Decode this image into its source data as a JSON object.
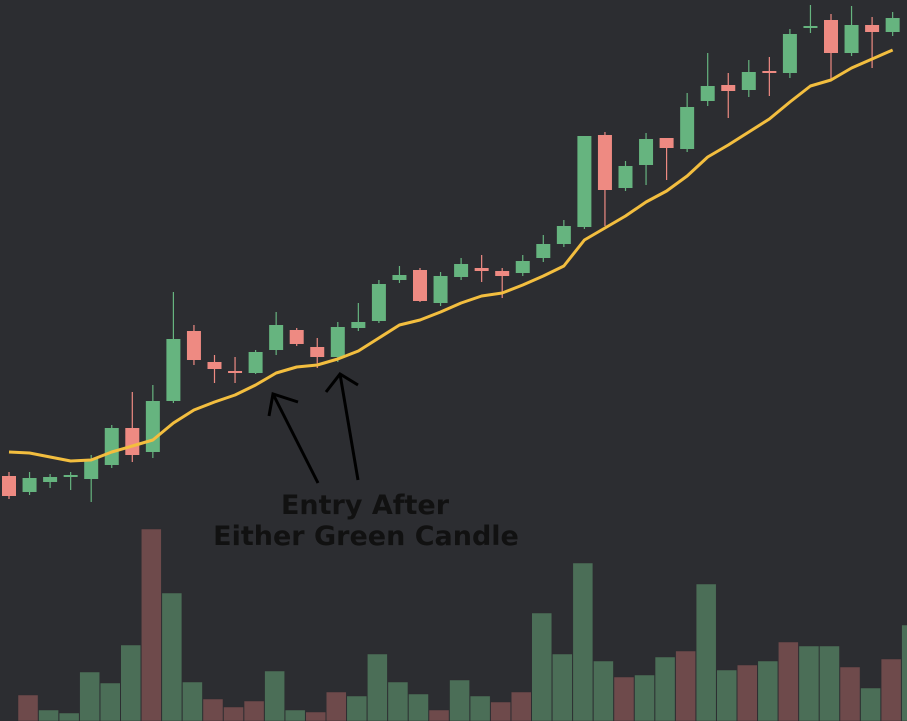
{
  "chart_data": {
    "type": "candlestick",
    "categories": [
      null,
      null,
      null,
      null,
      null,
      null,
      null,
      null,
      null,
      null,
      null,
      null,
      null,
      null,
      null,
      null,
      null,
      null,
      null,
      null,
      null,
      null,
      null,
      null,
      null,
      null,
      null,
      null,
      null,
      null,
      null,
      null,
      null,
      null,
      null,
      null,
      null,
      null,
      null,
      null,
      null,
      null,
      null,
      null
    ],
    "open": [
      245,
      229,
      239,
      244,
      242,
      256,
      293,
      269,
      320,
      390,
      359,
      350,
      348,
      371,
      391,
      374,
      364,
      393,
      400,
      441,
      451,
      418,
      444,
      453,
      450,
      448,
      463,
      477,
      494,
      586,
      533,
      556,
      583,
      572,
      620,
      636,
      631,
      650,
      648,
      693,
      701,
      668,
      696,
      689
    ],
    "high": [
      249,
      249,
      247,
      249,
      266,
      296,
      329,
      336,
      429,
      396,
      366,
      364,
      371,
      409,
      393,
      383,
      399,
      418,
      441,
      455,
      453,
      449,
      463,
      466,
      453,
      466,
      486,
      501,
      585,
      589,
      560,
      588,
      583,
      628,
      668,
      648,
      661,
      664,
      692,
      716,
      707,
      715,
      704,
      709
    ],
    "low": [
      222,
      226,
      233,
      231,
      219,
      253,
      259,
      263,
      318,
      356,
      338,
      338,
      347,
      366,
      375,
      353,
      359,
      390,
      398,
      438,
      419,
      415,
      441,
      439,
      423,
      445,
      459,
      474,
      492,
      495,
      530,
      536,
      541,
      569,
      615,
      603,
      624,
      625,
      643,
      688,
      641,
      665,
      653,
      685
    ],
    "close": [
      225,
      243,
      244,
      246,
      262,
      293,
      266,
      320,
      382,
      361,
      352,
      348,
      369,
      396,
      377,
      364,
      394,
      399,
      437,
      446,
      420,
      445,
      457,
      450,
      445,
      460,
      477,
      495,
      585,
      531,
      555,
      582,
      573,
      614,
      635,
      630,
      649,
      648,
      687,
      695,
      668,
      696,
      689,
      703
    ],
    "ma": [
      269,
      268,
      264,
      260,
      261,
      269,
      275,
      281,
      298,
      311,
      319,
      326,
      336,
      348,
      354,
      356,
      362,
      370,
      383,
      396,
      401,
      409,
      418,
      425,
      428,
      436,
      445,
      455,
      481,
      493,
      505,
      519,
      530,
      545,
      564,
      576,
      589,
      602,
      619,
      635,
      641,
      653,
      662,
      671
    ],
    "volume": [
      26,
      11,
      8,
      49,
      38,
      76,
      192,
      128,
      39,
      22,
      14,
      20,
      50,
      11,
      9,
      29,
      25,
      67,
      39,
      27,
      11,
      41,
      25,
      19,
      29,
      108,
      67,
      158,
      60,
      44,
      46,
      64,
      70,
      137,
      51,
      56,
      60,
      79,
      75,
      75,
      54,
      33,
      62,
      96
    ],
    "ylim": [
      0,
      721
    ],
    "up_color": "#66b47f",
    "down_color": "#ee8a82",
    "ma_color": "#f3be3f",
    "volume_up_color": "#4b6e57",
    "volume_down_color": "#6e4a4b",
    "annotation": [
      "Entry After",
      "Either Green Candle"
    ]
  }
}
